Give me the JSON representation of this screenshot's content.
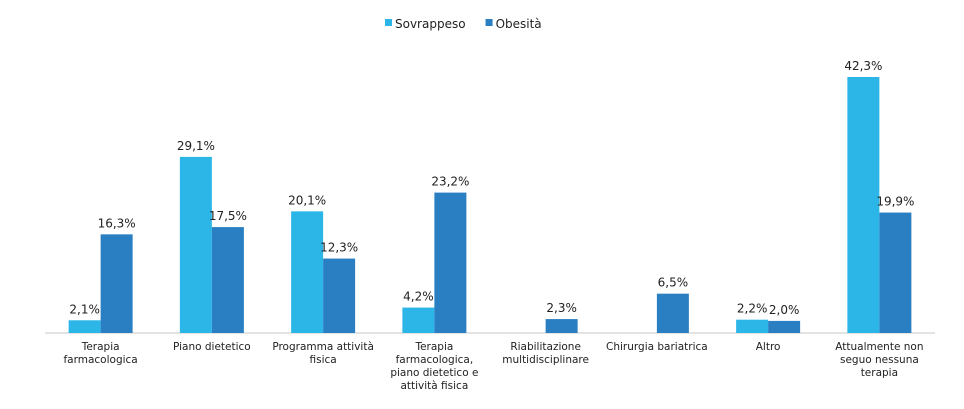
{
  "chart_data": {
    "type": "bar",
    "categories": [
      "Terapia farmacologica",
      "Piano dietetico",
      "Programma attività fisica",
      "Terapia farmacologica, piano dietetico e attività fisica",
      "Riabilitazione multidisciplinare",
      "Chirurgia bariatrica",
      "Altro",
      "Attualmente non seguo nessuna terapia"
    ],
    "series": [
      {
        "name": "Sovrappeso",
        "color": "#2cb6e8",
        "values": [
          2.1,
          29.1,
          20.1,
          4.2,
          null,
          null,
          2.2,
          42.3
        ],
        "value_labels": [
          "2,1%",
          "29,1%",
          "20,1%",
          "4,2%",
          null,
          null,
          "2,2%",
          "42,3%"
        ]
      },
      {
        "name": "Obesità",
        "color": "#2a7fc2",
        "values": [
          16.3,
          17.5,
          12.3,
          23.2,
          2.3,
          6.5,
          2.0,
          19.9
        ],
        "value_labels": [
          "16,3%",
          "17,5%",
          "12,3%",
          "23,2%",
          "2,3%",
          "6,5%",
          "2,0%",
          "19,9%"
        ]
      }
    ],
    "legend": "top"
  }
}
